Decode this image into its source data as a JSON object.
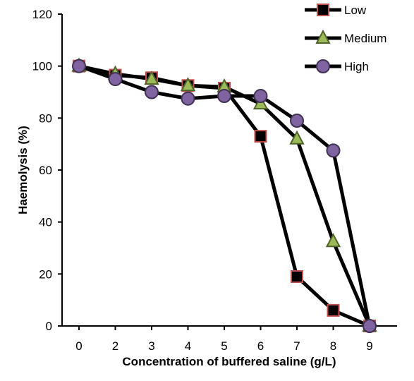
{
  "chart_data": {
    "type": "line",
    "title": "",
    "xlabel": "Concentration of buffered saline (g/L)",
    "ylabel": "Haemolysis (%)",
    "categories": [
      "0",
      "2",
      "3",
      "4",
      "5",
      "6",
      "7",
      "8",
      "9"
    ],
    "ylim": [
      0,
      120
    ],
    "yticks": [
      0,
      20,
      40,
      60,
      80,
      100,
      120
    ],
    "grid": false,
    "legend_position": "top-right",
    "series": [
      {
        "name": "Low",
        "marker": "square",
        "fill": "#000000",
        "stroke": "#c0504d",
        "values": [
          100,
          96.5,
          95.5,
          92.5,
          91.5,
          73,
          19,
          6,
          0
        ]
      },
      {
        "name": "Medium",
        "marker": "triangle",
        "fill": "#9bbb59",
        "stroke": "#4f6228",
        "values": [
          100,
          97,
          95,
          92.5,
          92,
          85.5,
          72,
          32.5,
          0
        ]
      },
      {
        "name": "High",
        "marker": "circle",
        "fill": "#8064a2",
        "stroke": "#3f3151",
        "values": [
          100,
          95,
          90,
          87.5,
          88.5,
          88.5,
          79,
          67.5,
          0
        ]
      }
    ]
  }
}
